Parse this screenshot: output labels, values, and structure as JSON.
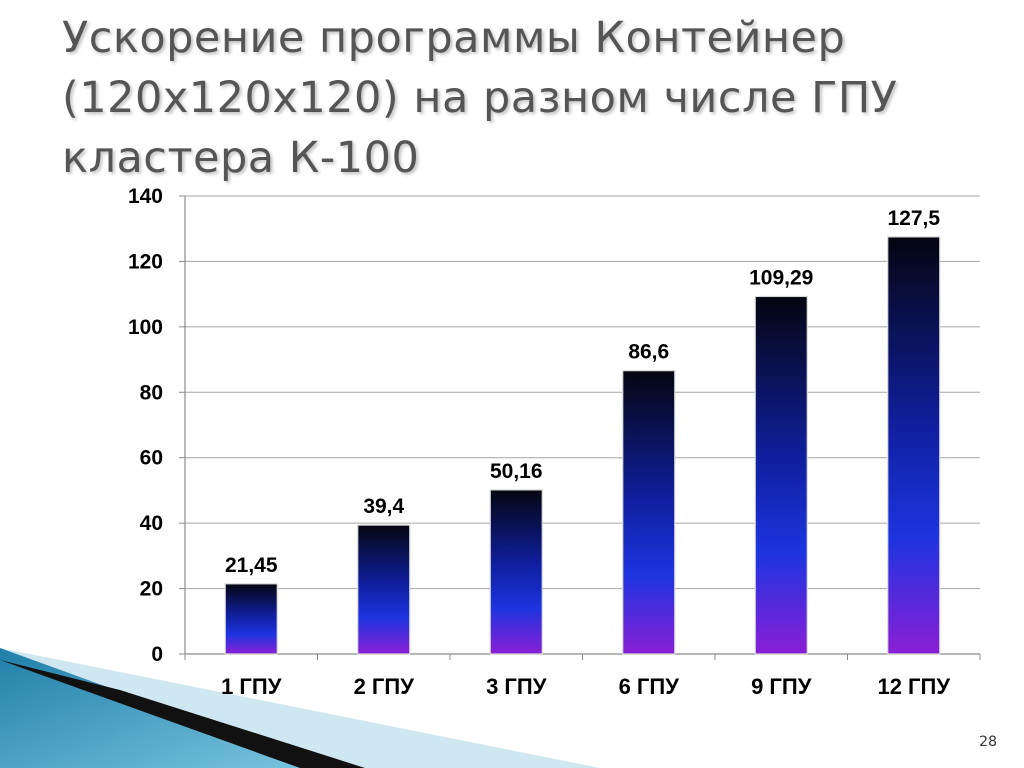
{
  "slide": {
    "title_lines": [
      "Ускорение программы Контейнер",
      "(120x120x120) на разном числе ГПУ",
      "кластера К-100"
    ],
    "page_number": "28"
  },
  "colors": {
    "bar_top": "#050510",
    "bar_mid": "#1a2bd6",
    "bar_bottom": "#7a20d0",
    "grid": "#a6a6a6",
    "axis": "#8c8c8c",
    "decor_teal": "#3aa3c7",
    "decor_light": "#bfe0ec",
    "decor_dark": "#111111"
  },
  "chart_data": {
    "type": "bar",
    "categories": [
      "1 ГПУ",
      "2 ГПУ",
      "3 ГПУ",
      "6 ГПУ",
      "9 ГПУ",
      "12 ГПУ"
    ],
    "values": [
      21.45,
      39.4,
      50.16,
      86.6,
      109.29,
      127.5
    ],
    "data_labels": [
      "21,45",
      "39,4",
      "50,16",
      "86,6",
      "109,29",
      "127,5"
    ],
    "ylim": [
      0,
      140
    ],
    "yticks": [
      0,
      20,
      40,
      60,
      80,
      100,
      120,
      140
    ],
    "grid": true,
    "legend": false
  }
}
